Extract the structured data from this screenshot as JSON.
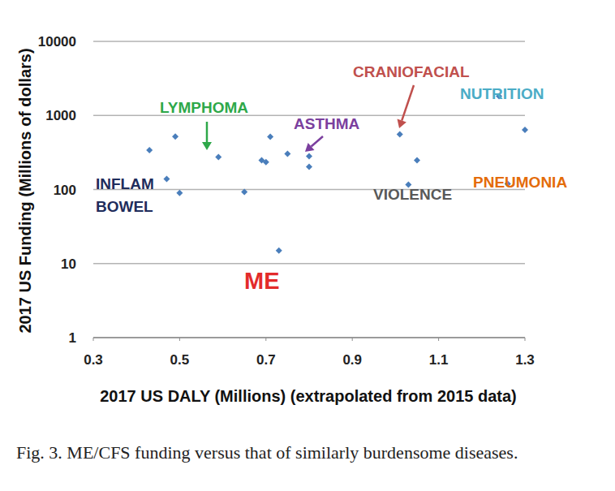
{
  "chart_data": {
    "type": "scatter",
    "caption": "Fig. 3.  ME/CFS funding versus that of similarly burdensome diseases.",
    "x_label": "2017 US DALY (Millions) (extrapolated from 2015 data)",
    "y_label": "2017 US Funding (Millions of dollars)",
    "x": [
      0.43,
      0.47,
      0.49,
      0.5,
      0.59,
      0.65,
      0.69,
      0.7,
      0.71,
      0.73,
      0.75,
      0.8,
      0.8,
      1.01,
      1.03,
      1.05,
      1.24,
      1.26,
      1.3
    ],
    "values": [
      340,
      139,
      520,
      90,
      274,
      93,
      248,
      235,
      515,
      15,
      303,
      281,
      203,
      556,
      116,
      248,
      1820,
      119,
      640
    ],
    "color": "#4a7ebb",
    "marker": "diamond",
    "xlim": [
      0.3,
      1.3
    ],
    "ylim": [
      1,
      10000
    ],
    "xticks": [
      0.3,
      0.5,
      0.7,
      0.9,
      1.1,
      1.3
    ],
    "yticks": [
      1,
      10,
      100,
      1000,
      10000
    ],
    "log": "y",
    "grid": true,
    "annotations": [
      {
        "text": "INFLAM BOWEL",
        "color": "#1f2d5c"
      },
      {
        "text": "LYMPHOMA",
        "color": "#2ea84a"
      },
      {
        "text": "ASTHMA",
        "color": "#7b3f9e"
      },
      {
        "text": "CRANIOFACIAL",
        "color": "#c0504d"
      },
      {
        "text": "NUTRITION",
        "color": "#4bacc6"
      },
      {
        "text": "VIOLENCE",
        "color": "#595959"
      },
      {
        "text": "PNEUMONIA",
        "color": "#e46c0a"
      },
      {
        "text": "ME",
        "color": "#e32b2b"
      }
    ]
  }
}
